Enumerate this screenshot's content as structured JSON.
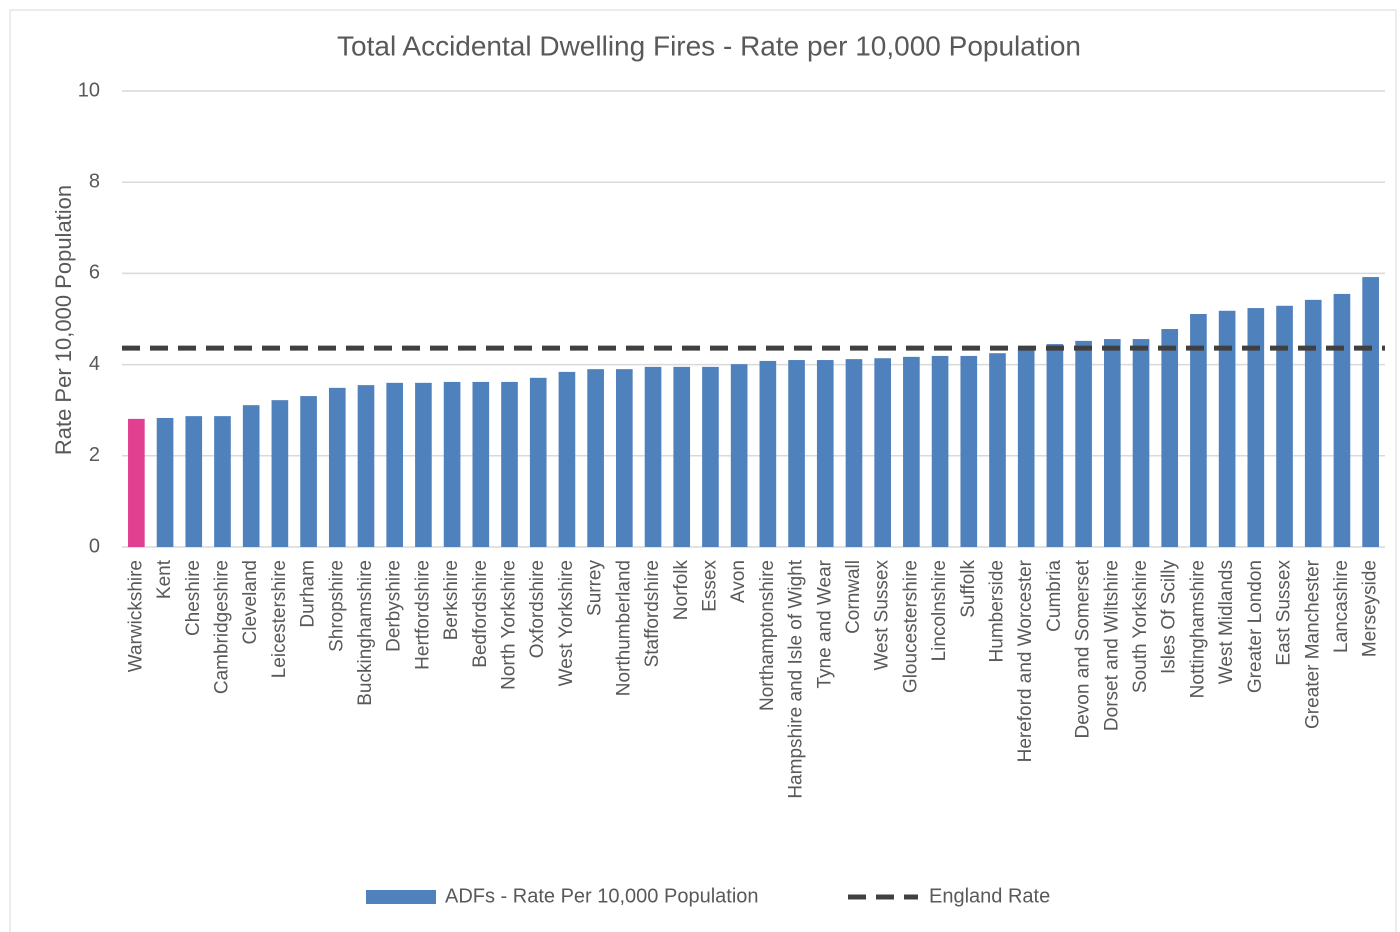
{
  "chart_data": {
    "type": "bar",
    "title": "Total Accidental Dwelling Fires - Rate per 10,000 Population",
    "y_label": "Rate Per 10,000 Population",
    "categories": [
      "Warwickshire",
      "Kent",
      "Cheshire",
      "Cambridgeshire",
      "Cleveland",
      "Leicestershire",
      "Durham",
      "Shropshire",
      "Buckinghamshire",
      "Derbyshire",
      "Hertfordshire",
      "Berkshire",
      "Bedfordshire",
      "North Yorkshire",
      "Oxfordshire",
      "West Yorkshire",
      "Surrey",
      "Northumberland",
      "Staffordshire",
      "Norfolk",
      "Essex",
      "Avon",
      "Northamptonshire",
      "Hampshire and Isle of Wight",
      "Tyne and Wear",
      "Cornwall",
      "West Sussex",
      "Gloucestershire",
      "Lincolnshire",
      "Suffolk",
      "Humberside",
      "Hereford and Worcester",
      "Cumbria",
      "Devon and Somerset",
      "Dorset and Wiltshire",
      "South Yorkshire",
      "Isles Of Scilly",
      "Nottinghamshire",
      "West Midlands",
      "Greater London",
      "East Sussex",
      "Greater Manchester",
      "Lancashire",
      "Merseyside"
    ],
    "series": [
      {
        "name": "ADFs - Rate Per 10,000 Population",
        "color": "#4f81bd",
        "values": [
          2.81,
          2.83,
          2.87,
          2.87,
          3.11,
          3.22,
          3.31,
          3.49,
          3.55,
          3.6,
          3.6,
          3.62,
          3.62,
          3.62,
          3.71,
          3.84,
          3.9,
          3.9,
          3.95,
          3.95,
          3.95,
          4.01,
          4.08,
          4.1,
          4.1,
          4.12,
          4.14,
          4.17,
          4.19,
          4.19,
          4.25,
          4.37,
          4.45,
          4.52,
          4.56,
          4.56,
          4.78,
          5.11,
          5.18,
          5.24,
          5.29,
          5.42,
          5.55,
          5.92
        ],
        "bar_colors": [
          "#e0408f",
          "#4f81bd",
          "#4f81bd",
          "#4f81bd",
          "#4f81bd",
          "#4f81bd",
          "#4f81bd",
          "#4f81bd",
          "#4f81bd",
          "#4f81bd",
          "#4f81bd",
          "#4f81bd",
          "#4f81bd",
          "#4f81bd",
          "#4f81bd",
          "#4f81bd",
          "#4f81bd",
          "#4f81bd",
          "#4f81bd",
          "#4f81bd",
          "#4f81bd",
          "#4f81bd",
          "#4f81bd",
          "#4f81bd",
          "#4f81bd",
          "#4f81bd",
          "#4f81bd",
          "#4f81bd",
          "#4f81bd",
          "#4f81bd",
          "#4f81bd",
          "#4f81bd",
          "#4f81bd",
          "#4f81bd",
          "#4f81bd",
          "#4f81bd",
          "#4f81bd",
          "#4f81bd",
          "#4f81bd",
          "#4f81bd",
          "#4f81bd",
          "#4f81bd",
          "#4f81bd",
          "#4f81bd"
        ]
      }
    ],
    "reference_line": {
      "name": "England Rate",
      "value": 4.36,
      "color": "#404040"
    },
    "ylim": [
      0,
      10
    ],
    "yticks": [
      0,
      2,
      4,
      6,
      8,
      10
    ],
    "grid": true
  }
}
